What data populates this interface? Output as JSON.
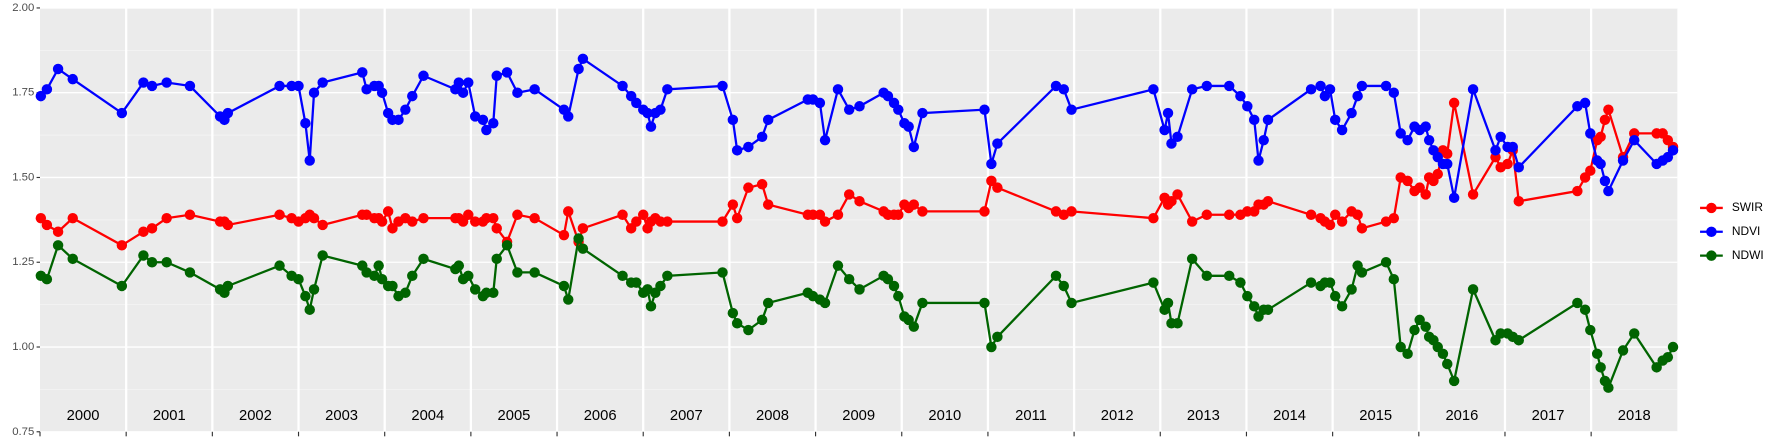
{
  "chart_data": {
    "type": "line",
    "x": [
      2000.01,
      2000.08,
      2000.21,
      2000.38,
      2000.95,
      2001.2,
      2001.3,
      2001.47,
      2001.74,
      2002.09,
      2002.14,
      2002.18,
      2002.78,
      2002.92,
      2003.0,
      2003.08,
      2003.13,
      2003.18,
      2003.28,
      2003.74,
      2003.79,
      2003.88,
      2003.93,
      2003.97,
      2004.04,
      2004.09,
      2004.16,
      2004.24,
      2004.32,
      2004.45,
      2004.82,
      2004.86,
      2004.91,
      2004.97,
      2005.05,
      2005.14,
      2005.18,
      2005.26,
      2005.3,
      2005.42,
      2005.54,
      2005.74,
      2006.08,
      2006.13,
      2006.25,
      2006.3,
      2006.76,
      2006.86,
      2006.92,
      2007.0,
      2007.05,
      2007.09,
      2007.14,
      2007.2,
      2007.28,
      2007.92,
      2008.04,
      2008.09,
      2008.22,
      2008.38,
      2008.45,
      2008.91,
      2008.97,
      2009.05,
      2009.11,
      2009.26,
      2009.39,
      2009.51,
      2009.79,
      2009.84,
      2009.91,
      2009.96,
      2010.03,
      2010.08,
      2010.14,
      2010.24,
      2010.96,
      2011.04,
      2011.11,
      2011.79,
      2011.88,
      2011.97,
      2012.92,
      2013.05,
      2013.09,
      2013.13,
      2013.2,
      2013.37,
      2013.54,
      2013.8,
      2013.93,
      2014.01,
      2014.09,
      2014.14,
      2014.2,
      2014.25,
      2014.75,
      2014.86,
      2014.91,
      2014.97,
      2015.03,
      2015.11,
      2015.22,
      2015.29,
      2015.34,
      2015.62,
      2015.71,
      2015.79,
      2015.87,
      2015.95,
      2016.01,
      2016.08,
      2016.12,
      2016.17,
      2016.22,
      2016.28,
      2016.33,
      2016.41,
      2016.63,
      2016.89,
      2016.95,
      2017.03,
      2017.09,
      2017.16,
      2017.84,
      2017.93,
      2017.99,
      2018.07,
      2018.11,
      2018.16,
      2018.2,
      2018.37,
      2018.5,
      2018.76,
      2018.83,
      2018.89,
      2018.95
    ],
    "series": [
      {
        "name": "SWIR",
        "color": "#ff0000",
        "values": [
          1.38,
          1.36,
          1.34,
          1.38,
          1.3,
          1.34,
          1.35,
          1.38,
          1.39,
          1.37,
          1.37,
          1.36,
          1.39,
          1.38,
          1.37,
          1.38,
          1.39,
          1.38,
          1.36,
          1.39,
          1.39,
          1.38,
          1.38,
          1.37,
          1.4,
          1.35,
          1.37,
          1.38,
          1.37,
          1.38,
          1.38,
          1.38,
          1.37,
          1.39,
          1.37,
          1.37,
          1.38,
          1.38,
          1.35,
          1.31,
          1.39,
          1.38,
          1.33,
          1.4,
          1.31,
          1.35,
          1.39,
          1.35,
          1.37,
          1.39,
          1.35,
          1.37,
          1.38,
          1.37,
          1.37,
          1.37,
          1.42,
          1.38,
          1.47,
          1.48,
          1.42,
          1.39,
          1.39,
          1.39,
          1.37,
          1.39,
          1.45,
          1.43,
          1.4,
          1.39,
          1.39,
          1.39,
          1.42,
          1.41,
          1.42,
          1.4,
          1.4,
          1.49,
          1.47,
          1.4,
          1.39,
          1.4,
          1.38,
          1.44,
          1.42,
          1.43,
          1.45,
          1.37,
          1.39,
          1.39,
          1.39,
          1.4,
          1.4,
          1.42,
          1.42,
          1.43,
          1.39,
          1.38,
          1.37,
          1.36,
          1.39,
          1.37,
          1.4,
          1.39,
          1.35,
          1.37,
          1.38,
          1.5,
          1.49,
          1.46,
          1.47,
          1.45,
          1.5,
          1.49,
          1.51,
          1.58,
          1.57,
          1.72,
          1.45,
          1.56,
          1.53,
          1.54,
          1.58,
          1.43,
          1.46,
          1.5,
          1.52,
          1.61,
          1.62,
          1.67,
          1.7,
          1.56,
          1.63,
          1.63,
          1.63,
          1.61,
          1.59
        ]
      },
      {
        "name": "NDVI",
        "color": "#0000ff",
        "values": [
          1.74,
          1.76,
          1.82,
          1.79,
          1.69,
          1.78,
          1.77,
          1.78,
          1.77,
          1.68,
          1.67,
          1.69,
          1.77,
          1.77,
          1.77,
          1.66,
          1.55,
          1.75,
          1.78,
          1.81,
          1.76,
          1.77,
          1.77,
          1.75,
          1.69,
          1.67,
          1.67,
          1.7,
          1.74,
          1.8,
          1.76,
          1.78,
          1.75,
          1.78,
          1.68,
          1.67,
          1.64,
          1.66,
          1.8,
          1.81,
          1.75,
          1.76,
          1.7,
          1.68,
          1.82,
          1.85,
          1.77,
          1.74,
          1.72,
          1.7,
          1.69,
          1.65,
          1.69,
          1.7,
          1.76,
          1.77,
          1.67,
          1.58,
          1.59,
          1.62,
          1.67,
          1.73,
          1.73,
          1.72,
          1.61,
          1.76,
          1.7,
          1.71,
          1.75,
          1.74,
          1.72,
          1.7,
          1.66,
          1.65,
          1.59,
          1.69,
          1.7,
          1.54,
          1.6,
          1.77,
          1.76,
          1.7,
          1.76,
          1.64,
          1.69,
          1.6,
          1.62,
          1.76,
          1.77,
          1.77,
          1.74,
          1.71,
          1.67,
          1.55,
          1.61,
          1.67,
          1.76,
          1.77,
          1.74,
          1.76,
          1.67,
          1.64,
          1.69,
          1.74,
          1.77,
          1.77,
          1.75,
          1.63,
          1.61,
          1.65,
          1.64,
          1.65,
          1.61,
          1.58,
          1.56,
          1.54,
          1.54,
          1.44,
          1.76,
          1.58,
          1.62,
          1.59,
          1.59,
          1.53,
          1.71,
          1.72,
          1.63,
          1.55,
          1.54,
          1.49,
          1.46,
          1.55,
          1.61,
          1.54,
          1.55,
          1.56,
          1.58
        ]
      },
      {
        "name": "NDWI",
        "color": "#006400",
        "values": [
          1.21,
          1.2,
          1.3,
          1.26,
          1.18,
          1.27,
          1.25,
          1.25,
          1.22,
          1.17,
          1.16,
          1.18,
          1.24,
          1.21,
          1.2,
          1.15,
          1.11,
          1.17,
          1.27,
          1.24,
          1.22,
          1.21,
          1.24,
          1.2,
          1.18,
          1.18,
          1.15,
          1.16,
          1.21,
          1.26,
          1.23,
          1.24,
          1.2,
          1.21,
          1.17,
          1.15,
          1.16,
          1.16,
          1.26,
          1.3,
          1.22,
          1.22,
          1.18,
          1.14,
          1.32,
          1.29,
          1.21,
          1.19,
          1.19,
          1.16,
          1.17,
          1.12,
          1.16,
          1.18,
          1.21,
          1.22,
          1.1,
          1.07,
          1.05,
          1.08,
          1.13,
          1.16,
          1.15,
          1.14,
          1.13,
          1.24,
          1.2,
          1.17,
          1.21,
          1.2,
          1.18,
          1.15,
          1.09,
          1.08,
          1.06,
          1.13,
          1.13,
          1.0,
          1.03,
          1.21,
          1.18,
          1.13,
          1.19,
          1.11,
          1.13,
          1.07,
          1.07,
          1.26,
          1.21,
          1.21,
          1.19,
          1.15,
          1.12,
          1.09,
          1.11,
          1.11,
          1.19,
          1.18,
          1.19,
          1.19,
          1.15,
          1.12,
          1.17,
          1.24,
          1.22,
          1.25,
          1.2,
          1.0,
          0.98,
          1.05,
          1.08,
          1.06,
          1.03,
          1.02,
          1.0,
          0.98,
          0.95,
          0.9,
          1.17,
          1.02,
          1.04,
          1.04,
          1.03,
          1.02,
          1.13,
          1.11,
          1.05,
          0.98,
          0.94,
          0.9,
          0.88,
          0.99,
          1.04,
          0.94,
          0.96,
          0.97,
          1.0
        ]
      }
    ],
    "xlim": [
      2000,
      2019
    ],
    "xticks": [
      2001,
      2002,
      2003,
      2004,
      2005,
      2006,
      2007,
      2008,
      2009,
      2010,
      2011,
      2012,
      2013,
      2014,
      2015,
      2016,
      2017,
      2018
    ],
    "ylim": [
      0.75,
      2.0
    ],
    "yticks": [
      {
        "value": 0.75,
        "label": "0.75"
      },
      {
        "value": 1.0,
        "label": "1.00"
      },
      {
        "value": 1.25,
        "label": "1.25"
      },
      {
        "value": 1.5,
        "label": "1.50"
      },
      {
        "value": 1.75,
        "label": "1.75"
      },
      {
        "value": 2.0,
        "label": "2.00"
      }
    ],
    "year_labels": [
      "2000",
      "2001",
      "2002",
      "2003",
      "2004",
      "2005",
      "2006",
      "2007",
      "2008",
      "2009",
      "2010",
      "2011",
      "2012",
      "2013",
      "2014",
      "2015",
      "2016",
      "2017",
      "2018"
    ],
    "grid": true,
    "legend": "right"
  }
}
